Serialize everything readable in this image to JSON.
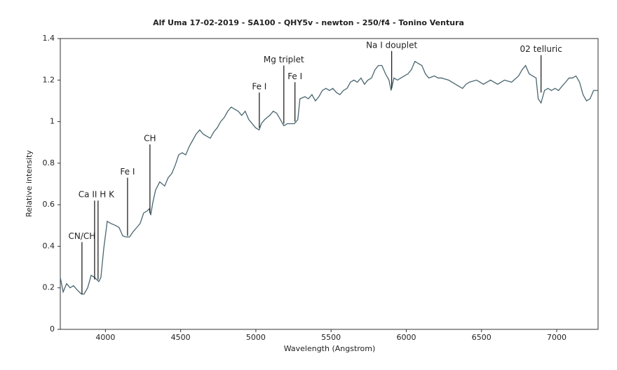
{
  "chart_data": {
    "type": "line",
    "title": "Alf Uma 17-02-2019 - SA100 - QHY5v - newton - 250/f4 - Tonino Ventura",
    "x_label": "Wavelength (Angstrom)",
    "y_label": "Relative intensity",
    "xlim": [
      3700,
      7275
    ],
    "ylim": [
      0,
      1.4
    ],
    "xticks": [
      4000,
      4500,
      5000,
      5500,
      6000,
      6500,
      7000
    ],
    "yticks": [
      0,
      0.2,
      0.4,
      0.6,
      0.8,
      1,
      1.2,
      1.4
    ],
    "x": [
      3700,
      3719,
      3742,
      3765,
      3788,
      3812,
      3840,
      3858,
      3882,
      3905,
      3928,
      3942,
      3956,
      3970,
      3989,
      4012,
      4035,
      4068,
      4091,
      4115,
      4138,
      4161,
      4184,
      4208,
      4231,
      4254,
      4277,
      4291,
      4301,
      4315,
      4333,
      4361,
      4394,
      4417,
      4441,
      4464,
      4487,
      4510,
      4534,
      4557,
      4580,
      4603,
      4627,
      4650,
      4673,
      4697,
      4720,
      4743,
      4766,
      4790,
      4813,
      4836,
      4859,
      4883,
      4906,
      4929,
      4953,
      4976,
      4999,
      5022,
      5036,
      5059,
      5092,
      5116,
      5139,
      5163,
      5186,
      5209,
      5256,
      5279,
      5293,
      5326,
      5349,
      5373,
      5396,
      5419,
      5442,
      5466,
      5489,
      5512,
      5536,
      5559,
      5582,
      5606,
      5629,
      5652,
      5675,
      5699,
      5722,
      5745,
      5769,
      5792,
      5815,
      5838,
      5862,
      5885,
      5899,
      5918,
      5941,
      5964,
      5987,
      6011,
      6034,
      6057,
      6080,
      6104,
      6127,
      6150,
      6187,
      6211,
      6234,
      6281,
      6327,
      6374,
      6397,
      6420,
      6467,
      6513,
      6560,
      6607,
      6653,
      6700,
      6747,
      6770,
      6793,
      6817,
      6840,
      6863,
      6877,
      6896,
      6919,
      6942,
      6965,
      6989,
      7012,
      7035,
      7059,
      7082,
      7105,
      7128,
      7152,
      7175,
      7198,
      7222,
      7245,
      7275
    ],
    "series": [
      {
        "name": "spectrum",
        "color": "#4a6670",
        "values": [
          0.25,
          0.18,
          0.22,
          0.2,
          0.21,
          0.19,
          0.17,
          0.17,
          0.2,
          0.26,
          0.25,
          0.24,
          0.23,
          0.25,
          0.39,
          0.52,
          0.51,
          0.5,
          0.49,
          0.45,
          0.445,
          0.445,
          0.47,
          0.49,
          0.51,
          0.56,
          0.57,
          0.58,
          0.55,
          0.61,
          0.67,
          0.71,
          0.69,
          0.73,
          0.75,
          0.79,
          0.84,
          0.85,
          0.84,
          0.88,
          0.91,
          0.94,
          0.96,
          0.94,
          0.93,
          0.92,
          0.95,
          0.97,
          1.0,
          1.02,
          1.05,
          1.07,
          1.06,
          1.05,
          1.03,
          1.05,
          1.01,
          0.99,
          0.97,
          0.96,
          0.99,
          1.01,
          1.03,
          1.05,
          1.04,
          1.01,
          0.98,
          0.99,
          0.99,
          1.01,
          1.11,
          1.12,
          1.11,
          1.13,
          1.1,
          1.12,
          1.15,
          1.16,
          1.15,
          1.16,
          1.14,
          1.13,
          1.15,
          1.16,
          1.19,
          1.2,
          1.19,
          1.21,
          1.18,
          1.2,
          1.21,
          1.25,
          1.27,
          1.27,
          1.23,
          1.2,
          1.15,
          1.21,
          1.2,
          1.21,
          1.22,
          1.23,
          1.25,
          1.29,
          1.28,
          1.27,
          1.23,
          1.21,
          1.22,
          1.21,
          1.21,
          1.2,
          1.18,
          1.16,
          1.18,
          1.19,
          1.2,
          1.18,
          1.2,
          1.18,
          1.2,
          1.19,
          1.22,
          1.25,
          1.27,
          1.23,
          1.22,
          1.21,
          1.11,
          1.09,
          1.15,
          1.16,
          1.15,
          1.16,
          1.15,
          1.17,
          1.19,
          1.21,
          1.21,
          1.22,
          1.19,
          1.13,
          1.1,
          1.11,
          1.15,
          1.15
        ]
      }
    ],
    "annotations": [
      {
        "text": "CN/CH",
        "x": [
          3844
        ],
        "y_from": 0.42,
        "y_to": 0.17
      },
      {
        "text": "Ca II  H K",
        "x": [
          3928,
          3951
        ],
        "y_from": 0.62,
        "y_to": 0.24
      },
      {
        "text": "Fe I",
        "x": [
          4147
        ],
        "y_from": 0.73,
        "y_to": 0.45
      },
      {
        "text": "CH",
        "x": [
          4296
        ],
        "y_from": 0.89,
        "y_to": 0.56
      },
      {
        "text": "Fe I",
        "x": [
          5023
        ],
        "y_from": 1.14,
        "y_to": 0.97
      },
      {
        "text": "Mg triplet",
        "x": [
          5186
        ],
        "y_from": 1.27,
        "y_to": 0.99
      },
      {
        "text": "Fe I",
        "x": [
          5260
        ],
        "y_from": 1.19,
        "y_to": 1.0
      },
      {
        "text": "Na I douplet",
        "x": [
          5903
        ],
        "y_from": 1.34,
        "y_to": 1.16
      },
      {
        "text": "02 telluric",
        "x": [
          6896
        ],
        "y_from": 1.32,
        "y_to": 1.14
      }
    ]
  }
}
